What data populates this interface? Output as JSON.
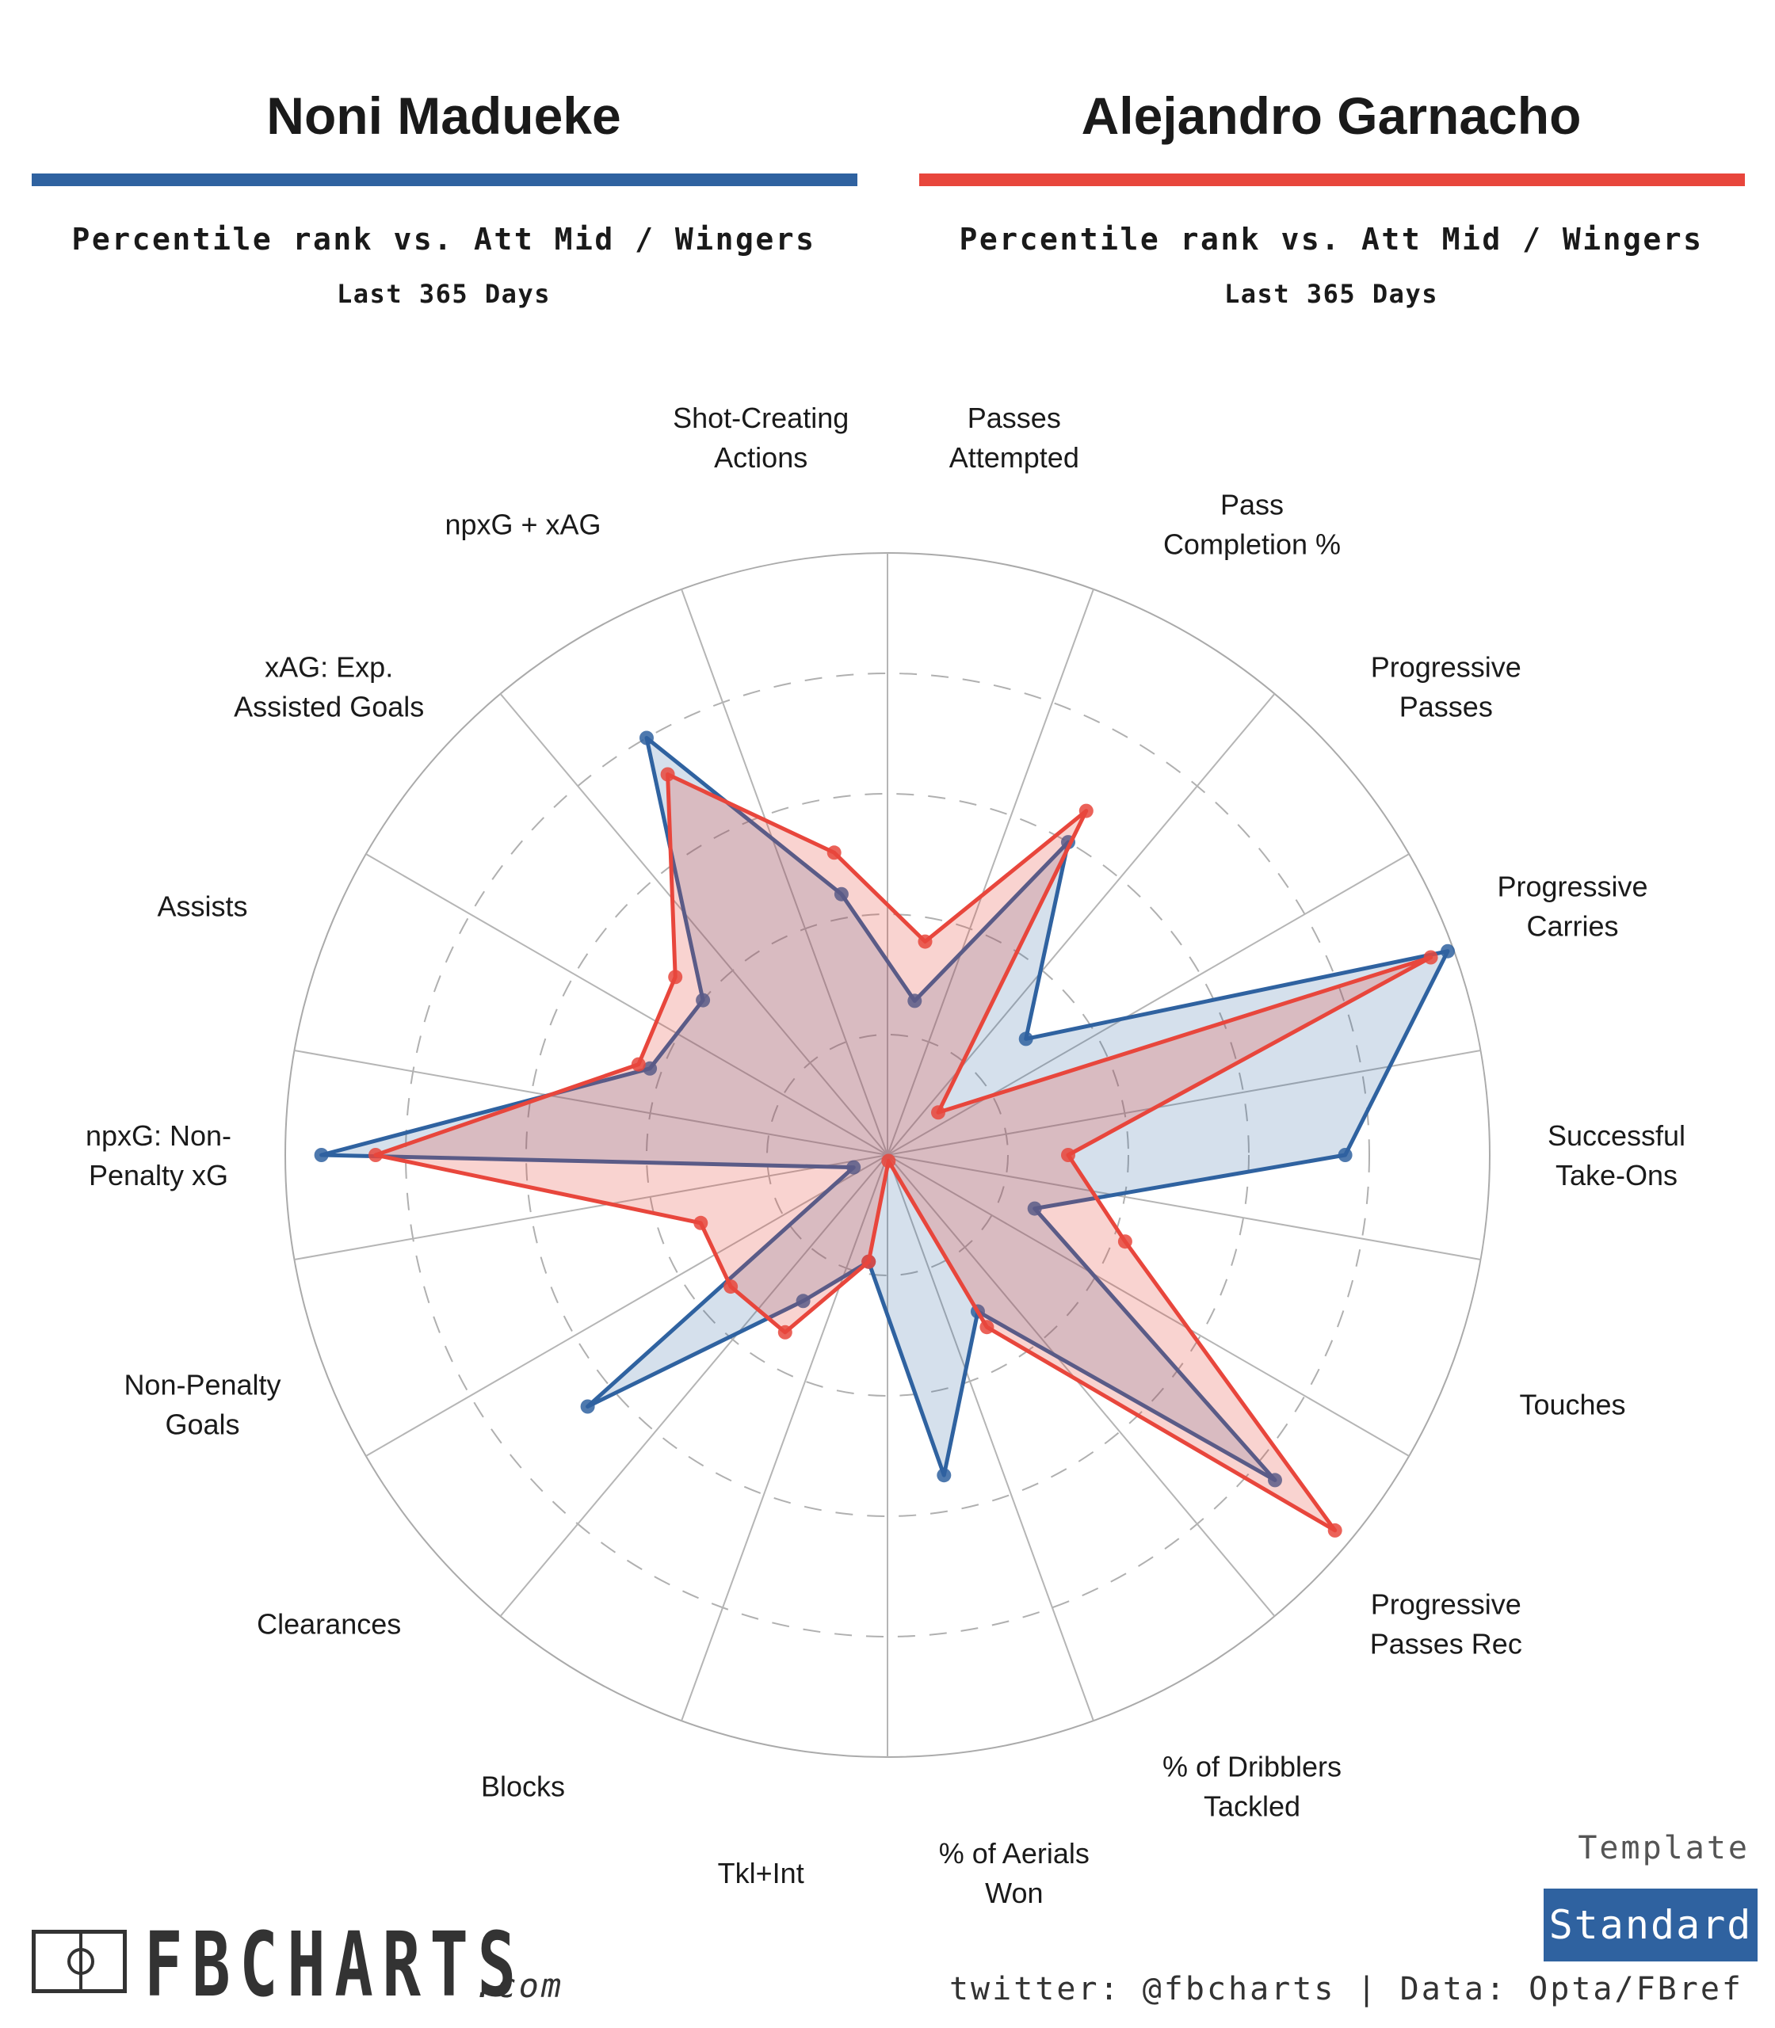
{
  "players": [
    {
      "name": "Noni Madueke",
      "color": "#2f62a0",
      "subtitle": "Percentile rank vs. Att Mid / Wingers",
      "period": "Last 365 Days"
    },
    {
      "name": "Alejandro Garnacho",
      "color": "#e8463c",
      "subtitle": "Percentile rank vs. Att Mid / Wingers",
      "period": "Last 365 Days"
    }
  ],
  "template": {
    "label": "Template",
    "value": "Standard"
  },
  "branding": {
    "logo": "FBCHARTS",
    "domain": ".com",
    "icon": "pitch-icon"
  },
  "footer": "twitter: @fbcharts | Data: Opta/FBref",
  "chart_data": {
    "type": "radar",
    "rmax": 100,
    "rings": [
      20,
      40,
      60,
      80
    ],
    "grid": true,
    "categories": [
      [
        "Passes",
        "Attempted"
      ],
      [
        "Pass",
        "Completion %"
      ],
      [
        "Progressive",
        "Passes"
      ],
      [
        "Progressive",
        "Carries"
      ],
      [
        "Successful",
        "Take-Ons"
      ],
      [
        "Touches"
      ],
      [
        "Progressive",
        "Passes Rec"
      ],
      [
        "% of Dribblers",
        "Tackled"
      ],
      [
        "% of Aerials",
        "Won"
      ],
      [
        "Tkl+Int"
      ],
      [
        "Blocks"
      ],
      [
        "Clearances"
      ],
      [
        "Non-Penalty",
        "Goals"
      ],
      [
        "npxG: Non-",
        "Penalty xG"
      ],
      [
        "Assists"
      ],
      [
        "xAG: Exp.",
        "Assisted Goals"
      ],
      [
        "npxG + xAG"
      ],
      [
        "Shot-Creating",
        "Actions"
      ]
    ],
    "series": [
      {
        "name": "Noni Madueke",
        "color": "#2f62a0",
        "values": [
          26,
          60,
          30,
          99,
          76,
          26,
          84,
          30,
          54,
          18,
          28,
          65,
          6,
          94,
          42,
          40,
          80,
          44
        ]
      },
      {
        "name": "Alejandro Garnacho",
        "color": "#e8463c",
        "values": [
          36,
          66,
          11,
          96,
          30,
          42,
          97,
          33,
          1,
          18,
          34,
          34,
          33,
          85,
          44,
          46,
          73,
          51
        ]
      }
    ]
  }
}
